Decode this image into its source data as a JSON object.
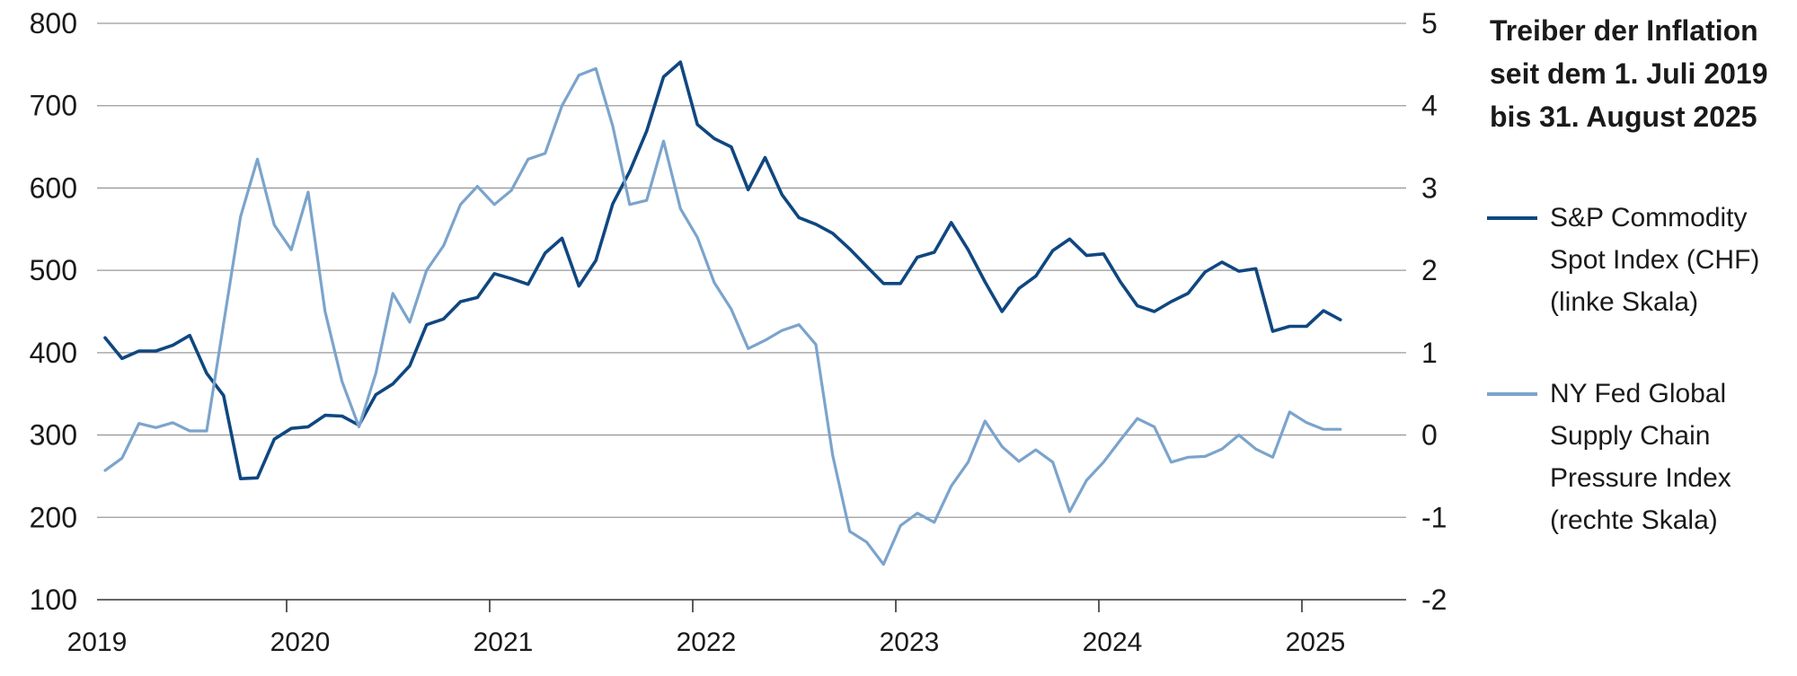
{
  "chart_data": {
    "type": "line",
    "title_lines": [
      "Treiber der Inflation",
      "seit dem 1. Juli 2019",
      "bis 31. August 2025"
    ],
    "x_ticks": [
      "2019",
      "2020",
      "2021",
      "2022",
      "2023",
      "2024",
      "2025"
    ],
    "y_left": {
      "min": 100,
      "max": 800,
      "ticks": [
        "800",
        "700",
        "600",
        "500",
        "400",
        "300",
        "200",
        "100"
      ]
    },
    "y_right": {
      "min": -2,
      "max": 5,
      "ticks": [
        "5",
        "4",
        "3",
        "2",
        "1",
        "0",
        "-1",
        "-2"
      ]
    },
    "grid": true,
    "legend_placement": "right",
    "x_start": "2019-07",
    "x_step": "month",
    "series": [
      {
        "name_lines": [
          "S&P Commodity",
          "Spot Index (CHF)",
          "(linke Skala)"
        ],
        "axis": "left",
        "color": "#0f4780",
        "values": [
          418,
          393,
          402,
          402,
          409,
          421,
          375,
          348,
          247,
          248,
          295,
          308,
          310,
          324,
          323,
          312,
          349,
          362,
          384,
          434,
          441,
          462,
          467,
          496,
          490,
          483,
          521,
          539,
          481,
          512,
          581,
          620,
          669,
          735,
          753,
          677,
          660,
          650,
          598,
          637,
          592,
          564,
          556,
          545,
          526,
          505,
          484,
          484,
          516,
          522,
          558,
          525,
          486,
          450,
          478,
          493,
          524,
          538,
          518,
          520,
          486,
          457,
          450,
          462,
          472,
          498,
          510,
          499,
          502,
          426,
          432,
          432,
          451,
          440
        ]
      },
      {
        "name_lines": [
          "NY Fed Global",
          "Supply Chain",
          "Pressure Index",
          "(rechte Skala)"
        ],
        "axis": "right",
        "color": "#7ba4cc",
        "values": [
          -0.43,
          -0.28,
          0.14,
          0.09,
          0.15,
          0.05,
          0.05,
          1.35,
          2.65,
          3.35,
          2.55,
          2.25,
          2.95,
          1.5,
          0.65,
          0.1,
          0.75,
          1.72,
          1.37,
          2.0,
          2.3,
          2.8,
          3.02,
          2.8,
          2.97,
          3.35,
          3.42,
          4.0,
          4.37,
          4.45,
          3.75,
          2.8,
          2.85,
          3.57,
          2.75,
          2.4,
          1.85,
          1.53,
          1.05,
          1.15,
          1.27,
          1.34,
          1.1,
          -0.25,
          -1.17,
          -1.3,
          -1.57,
          -1.1,
          -0.95,
          -1.06,
          -0.62,
          -0.33,
          0.17,
          -0.14,
          -0.32,
          -0.18,
          -0.33,
          -0.93,
          -0.55,
          -0.33,
          -0.06,
          0.2,
          0.1,
          -0.33,
          -0.27,
          -0.26,
          -0.17,
          0.0,
          -0.17,
          -0.27,
          0.28,
          0.15,
          0.07,
          0.07
        ]
      }
    ]
  }
}
